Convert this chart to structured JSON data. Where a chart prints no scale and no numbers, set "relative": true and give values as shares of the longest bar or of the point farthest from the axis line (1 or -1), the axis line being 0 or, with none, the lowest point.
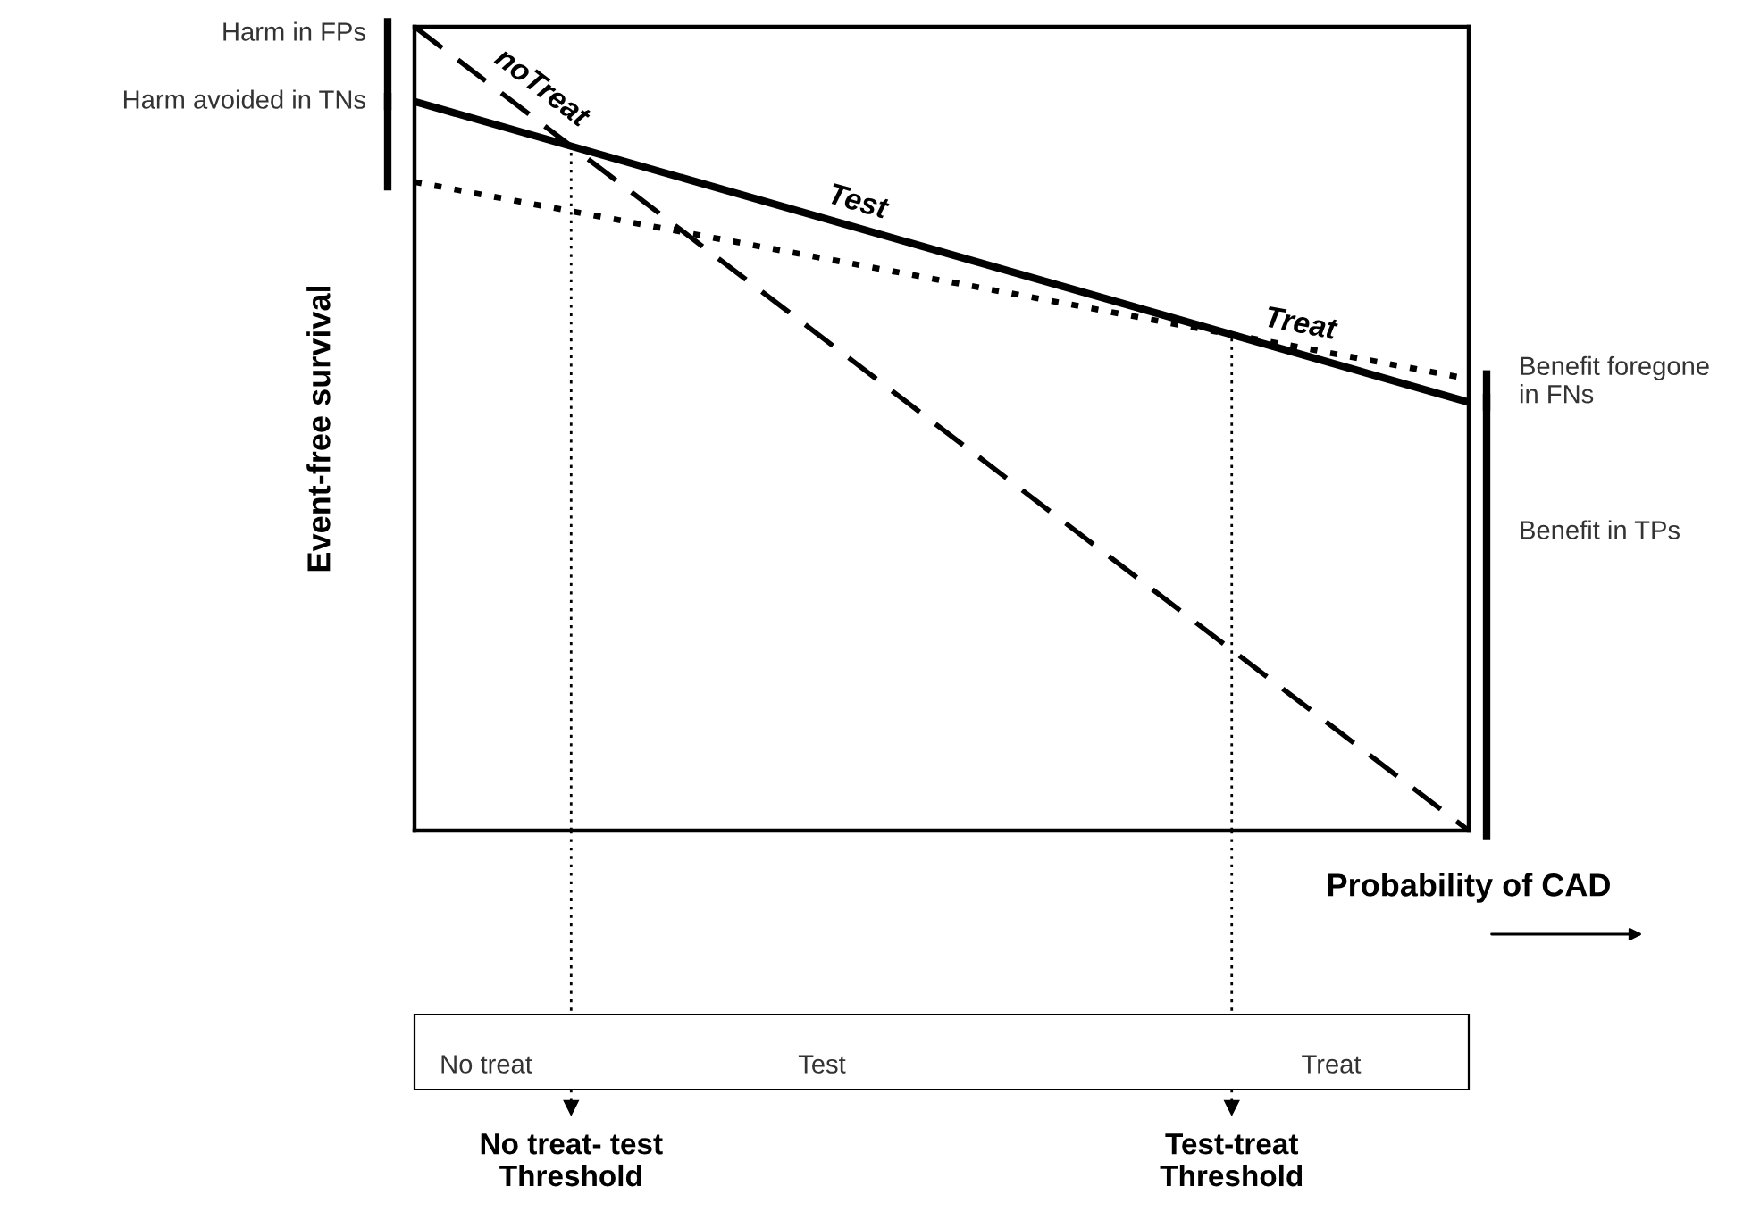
{
  "chart_data": {
    "type": "line",
    "relative": true,
    "categories": [
      null,
      null
    ],
    "xlabel": "Probability of CAD",
    "ylabel": "Event-free survival",
    "series": [
      {
        "name": "noTreat",
        "color": "#000000",
        "line_style": "dashed",
        "values": [
          1,
          0
        ]
      },
      {
        "name": "Test",
        "color": "#000000",
        "line_style": "solid",
        "values": [
          0.907,
          0.533
        ]
      },
      {
        "name": "Treat",
        "color": "#000000",
        "line_style": "dotted",
        "values": [
          0.807,
          0.562
        ]
      }
    ],
    "annotations": [
      "Harm in FPs",
      "Harm avoided in TNs",
      "Benefit foregone\nin FNs",
      "Benefit in TPs",
      "No treat",
      "Test",
      "Treat",
      "No treat- test\nThreshold",
      "Test-treat\nThreshold"
    ]
  }
}
